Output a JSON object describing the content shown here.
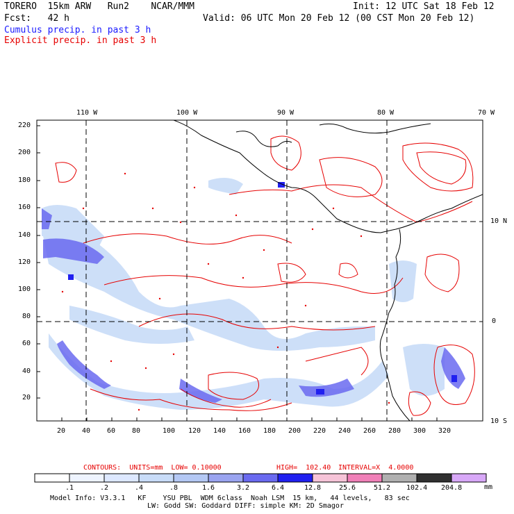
{
  "header": {
    "model": "TORERO  15km ARW   Run2    NCAR/MMM",
    "init": "Init: 12 UTC Sat 18 Feb 12",
    "fcst": "Fcst:   42 h",
    "valid": "Valid: 06 UTC Mon 20 Feb 12 (00 CST Mon 20 Feb 12)",
    "field1": "Cumulus precip. in past 3 h",
    "field2": "Explicit precip. in past 3 h",
    "field1_color": "#1a1aff",
    "field2_color": "#e60000"
  },
  "map": {
    "lon_labels": [
      "110 W",
      "100 W",
      "90 W",
      "80 W",
      "70 W"
    ],
    "lat_labels": [
      "10 N",
      "0",
      "10 S"
    ],
    "y_ticks": [
      "220",
      "200",
      "180",
      "160",
      "140",
      "120",
      "100",
      "80",
      "60",
      "40",
      "20"
    ],
    "x_ticks": [
      "20",
      "40",
      "60",
      "80",
      "100",
      "120",
      "140",
      "160",
      "180",
      "200",
      "220",
      "240",
      "260",
      "280",
      "300",
      "320"
    ]
  },
  "contours": {
    "units_label": "CONTOURS:  UNITS=mm  LOW= 0.10000",
    "high_label": "HIGH=  102.40",
    "interval_label": "INTERVAL=X  4.0000"
  },
  "colorbar": {
    "labels": [
      ".1",
      ".2",
      ".4",
      ".8",
      "1.6",
      "3.2",
      "6.4",
      "12.8",
      "25.6",
      "51.2",
      "102.4",
      "204.8"
    ],
    "colors": [
      "#ffffff",
      "#eef4ff",
      "#dde8ff",
      "#c8dcf8",
      "#b4c8f4",
      "#9aa4f0",
      "#6a6af0",
      "#2020f0",
      "#f6c4d8",
      "#f080b8",
      "#b0b0b0",
      "#303030",
      "#d8a8f8"
    ],
    "unit": "mm"
  },
  "footer": {
    "line1": "Model Info: V3.3.1   KF    YSU PBL  WDM 6class  Noah LSM  15 km,   44 levels,   83 sec",
    "line2": "LW: Godd SW: Goddard DIFF: simple KM: 2D Smagor"
  }
}
